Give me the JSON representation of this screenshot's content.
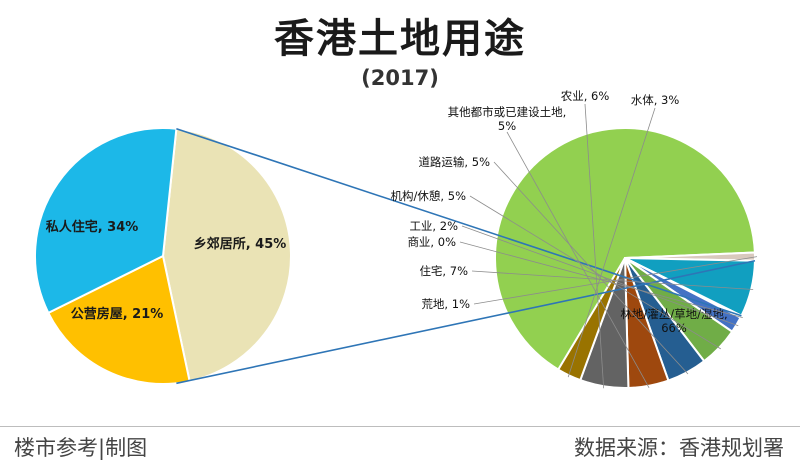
{
  "title": "香港土地用途",
  "subtitle": "(2017)",
  "footer": {
    "left": "楼市参考|制图",
    "right": "数据来源：香港规划署"
  },
  "chart_data": {
    "type": "pie",
    "title": "香港土地用途",
    "subtitle": "(2017)",
    "main_pie": {
      "slices": [
        {
          "label": "林地/灌丛/草地/湿地",
          "value": 66,
          "display": "林地/灌丛/草地/湿地, 66%",
          "color": "#92D050"
        },
        {
          "label": "荒地",
          "value": 1,
          "display": "荒地, 1%",
          "color": "#D9C9BD"
        },
        {
          "label": "住宅",
          "value": 7,
          "display": "住宅, 7%",
          "color": "#119FC0"
        },
        {
          "label": "商业",
          "value": 0,
          "display": "商业, 0%",
          "color": "#2F5597"
        },
        {
          "label": "工业",
          "value": 2,
          "display": "工业, 2%",
          "color": "#4472C4"
        },
        {
          "label": "机构/休憩",
          "value": 5,
          "display": "机构/休憩, 5%",
          "color": "#70AD47"
        },
        {
          "label": "道路运输",
          "value": 5,
          "display": "道路运输, 5%",
          "color": "#255E91"
        },
        {
          "label": "其他都市或已建设土地",
          "value": 5,
          "display": "其他都市或已建设土地, 5%",
          "color": "#9E480E"
        },
        {
          "label": "农业",
          "value": 6,
          "display": "农业, 6%",
          "color": "#636363"
        },
        {
          "label": "水体",
          "value": 3,
          "display": "水体, 3%",
          "color": "#997300"
        }
      ]
    },
    "breakdown_pie": {
      "of": "住宅",
      "slices": [
        {
          "label": "乡郊居所",
          "value": 45,
          "display": "乡郊居所, 45%",
          "color": "#EAE3B5"
        },
        {
          "label": "公营房屋",
          "value": 21,
          "display": "公营房屋, 21%",
          "color": "#FFC000"
        },
        {
          "label": "私人住宅",
          "value": 34,
          "display": "私人住宅, 34%",
          "color": "#1CB8E8"
        }
      ]
    }
  }
}
